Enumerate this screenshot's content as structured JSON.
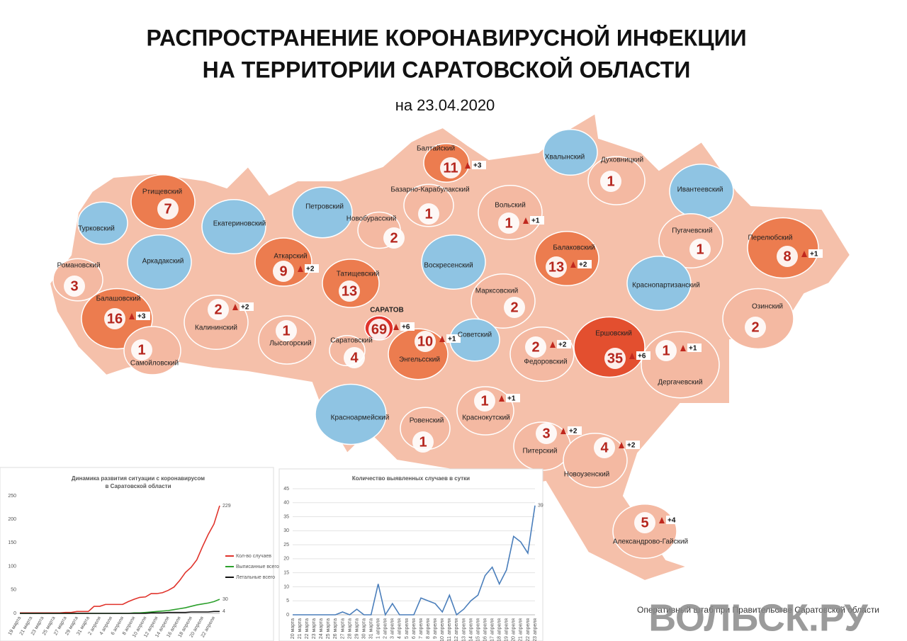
{
  "header": {
    "title": [
      "РАСПРОСТРАНЕНИЕ КОРОНАВИРУСНОЙ ИНФЕКЦИИ",
      "НА ТЕРРИТОРИИ САРАТОВСКОЙ ОБЛАСТИ"
    ],
    "date": "на 23.04.2020"
  },
  "districts": [
    {
      "name": "Балтайский",
      "cases": 11,
      "delta": {
        "value": 3,
        "label": "+3"
      },
      "color": "#ec7c4f"
    },
    {
      "name": "Хвалынский",
      "color": "#8fc4e3"
    },
    {
      "name": "Духовницкий",
      "cases": 1,
      "color": "#f4b9a2"
    },
    {
      "name": "Ивантеевский",
      "color": "#8fc4e3"
    },
    {
      "name": "Ртищевский",
      "cases": 7,
      "color": "#ec7c4f"
    },
    {
      "name": "Базарно-Карабулакский",
      "cases": 1,
      "color": "#f4b9a2"
    },
    {
      "name": "Петровский",
      "color": "#8fc4e3"
    },
    {
      "name": "Вольский",
      "cases": 1,
      "delta": {
        "value": 1,
        "label": "+1"
      },
      "color": "#f4b9a2"
    },
    {
      "name": "Екатериновский",
      "color": "#8fc4e3"
    },
    {
      "name": "Турковский",
      "color": "#8fc4e3"
    },
    {
      "name": "Новобурасский",
      "cases": 2,
      "color": "#f4b9a2"
    },
    {
      "name": "Пугачевский",
      "cases": 1,
      "color": "#f4b9a2"
    },
    {
      "name": "Перелюбский",
      "cases": 8,
      "delta": {
        "value": 1,
        "label": "+1"
      },
      "color": "#ec7c4f"
    },
    {
      "name": "Балаковский",
      "cases": 13,
      "delta": {
        "value": 2,
        "label": "+2"
      },
      "color": "#ec7c4f"
    },
    {
      "name": "Аркадакский",
      "color": "#8fc4e3"
    },
    {
      "name": "Аткарский",
      "cases": 9,
      "delta": {
        "value": 2,
        "label": "+2"
      },
      "color": "#ec7c4f"
    },
    {
      "name": "Татищевский",
      "cases": 13,
      "color": "#ec7c4f"
    },
    {
      "name": "Воскресенский",
      "color": "#8fc4e3"
    },
    {
      "name": "Романовский",
      "cases": 3,
      "color": "#f4b9a2"
    },
    {
      "name": "Краснопартизанский",
      "color": "#8fc4e3"
    },
    {
      "name": "Марксовский",
      "cases": 2,
      "color": "#f4b9a2"
    },
    {
      "name": "Озинский",
      "cases": 2,
      "color": "#f4b9a2"
    },
    {
      "name": "Балашовский",
      "cases": 16,
      "delta": {
        "value": 3,
        "label": "+3"
      },
      "color": "#ec7c4f"
    },
    {
      "name": "Калининский",
      "cases": 2,
      "delta": {
        "value": 2,
        "label": "+2"
      },
      "color": "#f4b9a2"
    },
    {
      "name": "САРАТОВ",
      "cases": 69,
      "delta": {
        "value": 6,
        "label": "+6"
      },
      "color": "#e0332b"
    },
    {
      "name": "Ершовский",
      "cases": 35,
      "delta": {
        "value": 6,
        "label": "+6"
      },
      "color": "#e34f2f"
    },
    {
      "name": "Лысогорский",
      "cases": 1,
      "color": "#f4b9a2"
    },
    {
      "name": "Саратовский",
      "cases": 4,
      "color": "#f4b9a2"
    },
    {
      "name": "Энгельсский",
      "cases": 10,
      "delta": {
        "value": 1,
        "label": "+1"
      },
      "color": "#ec7c4f"
    },
    {
      "name": "Советский",
      "color": "#8fc4e3"
    },
    {
      "name": "Федоровский",
      "cases": 2,
      "delta": {
        "value": 2,
        "label": "+2"
      },
      "color": "#f4b9a2"
    },
    {
      "name": "Дергачевский",
      "cases": 1,
      "delta": {
        "value": 1,
        "label": "+1"
      },
      "color": "#f4b9a2"
    },
    {
      "name": "Самойловский",
      "cases": 1,
      "color": "#f4b9a2"
    },
    {
      "name": "Красноармейский",
      "color": "#8fc4e3"
    },
    {
      "name": "Ровенский",
      "cases": 1,
      "color": "#f4b9a2"
    },
    {
      "name": "Краснокутский",
      "cases": 1,
      "delta": {
        "value": 1,
        "label": "+1"
      },
      "color": "#f4b9a2"
    },
    {
      "name": "Питерский",
      "cases": 3,
      "delta": {
        "value": 2,
        "label": "+2"
      },
      "color": "#f4b9a2"
    },
    {
      "name": "Новоузенский",
      "cases": 4,
      "delta": {
        "value": 2,
        "label": "+2"
      },
      "color": "#f4b9a2"
    },
    {
      "name": "Александрово-Гайский",
      "cases": 5,
      "delta": {
        "value": 4,
        "label": "+4"
      },
      "color": "#f4b9a2"
    }
  ],
  "chart_data": [
    {
      "type": "line",
      "title": [
        "Динамика развития ситуации с коронавирусом",
        "в Саратовской области"
      ],
      "categories": [
        "19 марта",
        null,
        "21 марта",
        null,
        "23 марта",
        null,
        "25 марта",
        null,
        "27 марта",
        null,
        "29 марта",
        null,
        "31 марта",
        null,
        "2 апреля",
        null,
        "4 апреля",
        null,
        "6 апреля",
        null,
        "8 апреля",
        null,
        "10 апреля",
        null,
        "12 апреля",
        null,
        "14 апреля",
        null,
        "16 апреля",
        null,
        "18 апреля",
        null,
        "20 апреля",
        null,
        "22 апреля",
        null
      ],
      "series": [
        {
          "name": "Кол-во случаев",
          "color": "#e0332b",
          "values": [
            1,
            1,
            1,
            1,
            1,
            1,
            1,
            1,
            2,
            2,
            4,
            4,
            4,
            15,
            15,
            19,
            19,
            19,
            19,
            25,
            30,
            34,
            35,
            42,
            42,
            44,
            49,
            56,
            70,
            87,
            98,
            114,
            142,
            168,
            190,
            229
          ]
        },
        {
          "name": "Выписанные всего",
          "color": "#2ca02c",
          "values": [
            0,
            0,
            0,
            0,
            0,
            0,
            0,
            0,
            0,
            0,
            0,
            0,
            0,
            0,
            0,
            0,
            0,
            0,
            0,
            0,
            1,
            1,
            2,
            3,
            4,
            5,
            6,
            8,
            10,
            12,
            15,
            18,
            20,
            22,
            25,
            30
          ]
        },
        {
          "name": "Летальные всего",
          "color": "#111111",
          "values": [
            0,
            0,
            0,
            0,
            0,
            0,
            0,
            0,
            0,
            0,
            0,
            0,
            0,
            0,
            0,
            0,
            0,
            0,
            0,
            0,
            0,
            0,
            0,
            1,
            1,
            1,
            2,
            2,
            2,
            2,
            3,
            3,
            3,
            3,
            4,
            4
          ]
        }
      ],
      "ylim": [
        0,
        250
      ],
      "yticks": [
        0,
        50,
        100,
        150,
        200,
        250
      ],
      "grid": false,
      "legend": "right"
    },
    {
      "type": "line",
      "title": [
        "Количество выявленных случаев в сутки"
      ],
      "categories": [
        "20 марта",
        "21 марта",
        "22 марта",
        "23 марта",
        "24 марта",
        "25 марта",
        "26 марта",
        "27 марта",
        "28 марта",
        "29 марта",
        "30 марта",
        "31 марта",
        "1 апреля",
        "2 апреля",
        "3 апреля",
        "4 апреля",
        "5 апреля",
        "6 апреля",
        "7 апреля",
        "8 апреля",
        "9 апреля",
        "10 апреля",
        "11 апреля",
        "12 апреля",
        "13 апреля",
        "14 апреля",
        "15 апреля",
        "16 апреля",
        "17 апреля",
        "18 апреля",
        "19 апреля",
        "20 апреля",
        "21 апреля",
        "22 апреля",
        "23 апреля"
      ],
      "series": [
        {
          "color": "#4a7ebb",
          "values": [
            0,
            0,
            0,
            0,
            0,
            0,
            0,
            1,
            0,
            2,
            0,
            0,
            11,
            0,
            4,
            0,
            0,
            0,
            6,
            5,
            4,
            1,
            7,
            0,
            2,
            5,
            7,
            14,
            17,
            11,
            16,
            28,
            26,
            22,
            39
          ]
        }
      ],
      "ylim": [
        0,
        45
      ],
      "yticks": [
        0,
        5,
        10,
        15,
        20,
        25,
        30,
        35,
        40,
        45
      ],
      "grid": true
    }
  ],
  "footer": {
    "source": "Оперативный штаб при Правительстве Саратовской области",
    "watermark": "ВОЛЬСК.РУ"
  }
}
